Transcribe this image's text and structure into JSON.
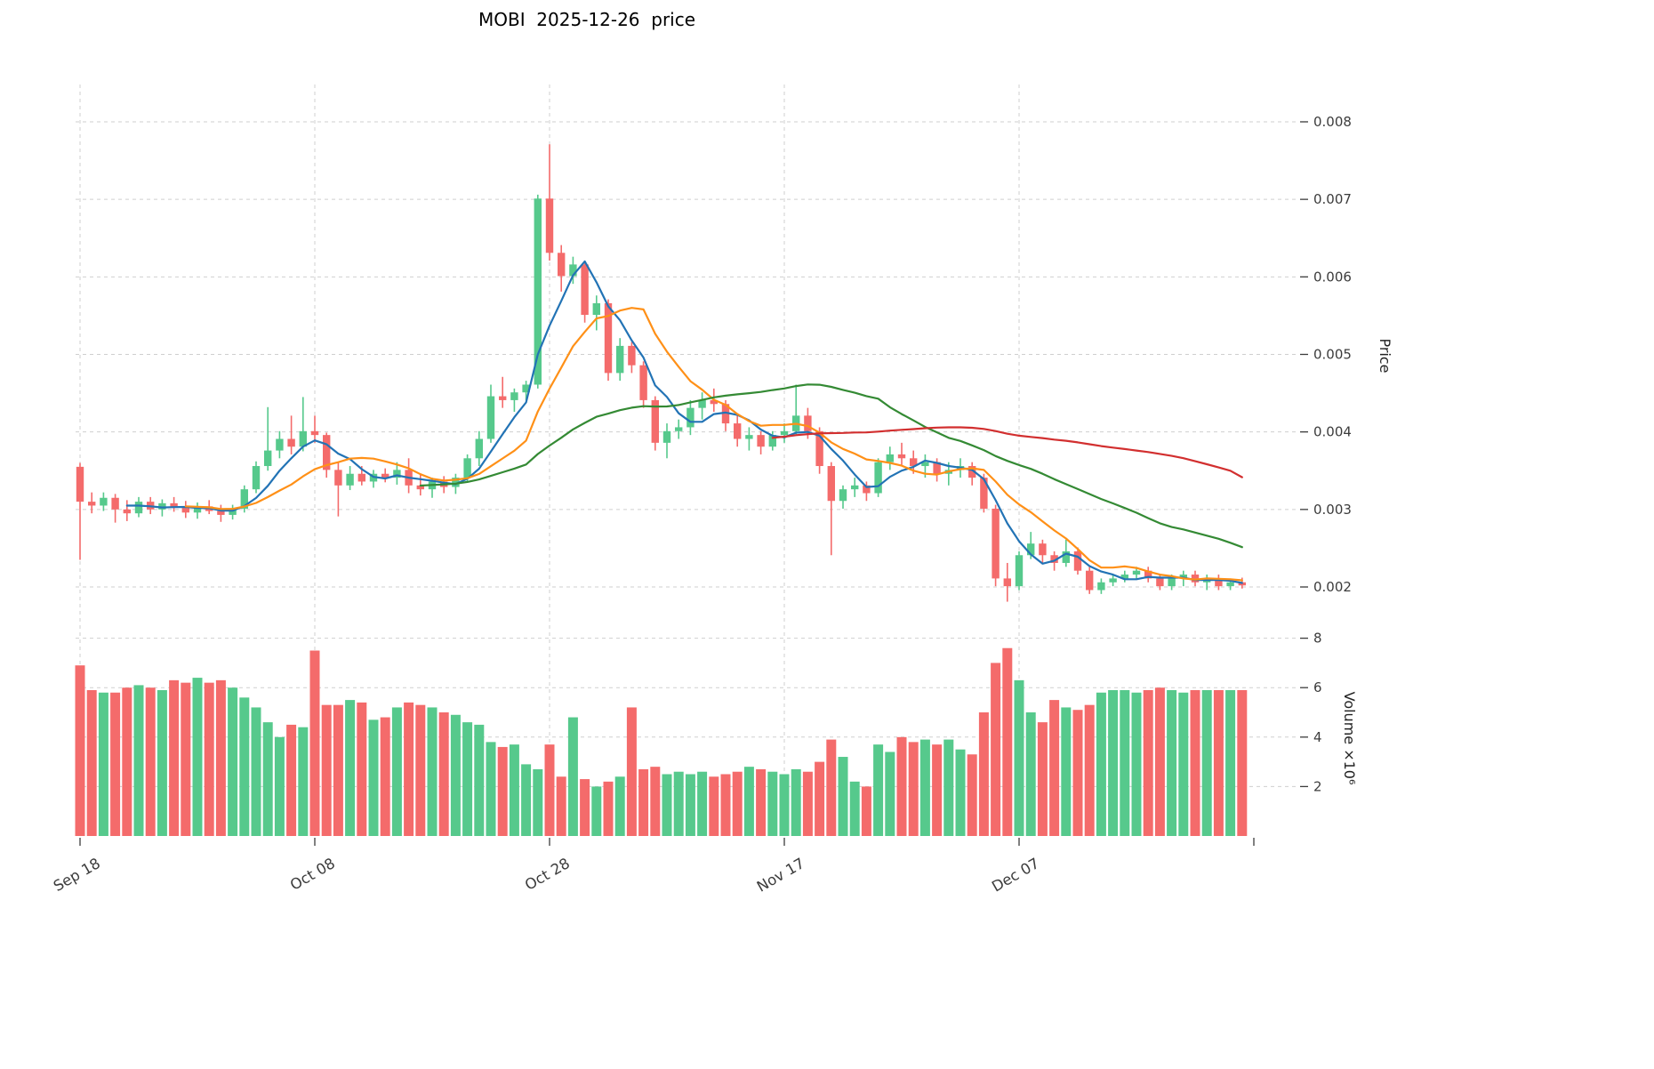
{
  "title": "MOBI  2025-12-26  price",
  "axes": {
    "price_axis_label": "Price",
    "volume_axis_label": "Volume ×10⁶",
    "price_ticks": [
      0.002,
      0.003,
      0.004,
      0.005,
      0.006,
      0.007,
      0.008
    ],
    "volume_ticks": [
      2,
      4,
      6,
      8
    ],
    "x_ticks": [
      {
        "index": 0,
        "label": "Sep 18"
      },
      {
        "index": 20,
        "label": "Oct 08"
      },
      {
        "index": 40,
        "label": "Oct 28"
      },
      {
        "index": 60,
        "label": "Nov 17"
      },
      {
        "index": 80,
        "label": "Dec 07"
      }
    ]
  },
  "colors": {
    "up": "#56c98c",
    "down": "#f46b6b",
    "grid": "#cfcfcf",
    "tick_text": "#3c3c3c",
    "axis_title_text": "#222222",
    "ma5": "#2273b5",
    "ma10": "#ff9017",
    "ma30": "#348a34",
    "ma60": "#d22f2f"
  },
  "chart_data": {
    "type": "candlestick",
    "title": "MOBI  2025-12-26  price",
    "price_ylim": [
      0.002,
      0.008
    ],
    "volume_ylim": [
      0,
      8
    ],
    "grid": true,
    "legend": false,
    "moving_averages": [
      {
        "name": "MA5",
        "window": 5,
        "color_key": "ma5"
      },
      {
        "name": "MA10",
        "window": 10,
        "color_key": "ma10"
      },
      {
        "name": "MA30",
        "window": 30,
        "color_key": "ma30"
      },
      {
        "name": "MA60",
        "window": 60,
        "color_key": "ma60"
      }
    ],
    "ohlc": [
      [
        0.00355,
        0.0036,
        0.00235,
        0.0031
      ],
      [
        0.0031,
        0.00322,
        0.00295,
        0.00305
      ],
      [
        0.00305,
        0.00322,
        0.00298,
        0.00315
      ],
      [
        0.00315,
        0.0032,
        0.00283,
        0.003
      ],
      [
        0.003,
        0.00312,
        0.00285,
        0.00295
      ],
      [
        0.00295,
        0.00316,
        0.0029,
        0.0031
      ],
      [
        0.0031,
        0.00316,
        0.00294,
        0.003
      ],
      [
        0.003,
        0.00313,
        0.00291,
        0.00308
      ],
      [
        0.00308,
        0.00316,
        0.00297,
        0.00302
      ],
      [
        0.00302,
        0.00311,
        0.00289,
        0.00296
      ],
      [
        0.00296,
        0.00309,
        0.00288,
        0.00304
      ],
      [
        0.00304,
        0.00312,
        0.00294,
        0.00298
      ],
      [
        0.00298,
        0.00306,
        0.00284,
        0.00293
      ],
      [
        0.00293,
        0.00306,
        0.00287,
        0.00301
      ],
      [
        0.00301,
        0.00331,
        0.00296,
        0.00326
      ],
      [
        0.00326,
        0.00362,
        0.00321,
        0.00356
      ],
      [
        0.00356,
        0.00432,
        0.0035,
        0.00376
      ],
      [
        0.00376,
        0.00401,
        0.00366,
        0.00391
      ],
      [
        0.00391,
        0.00421,
        0.00371,
        0.00381
      ],
      [
        0.00381,
        0.00445,
        0.00375,
        0.00401
      ],
      [
        0.00401,
        0.00421,
        0.00386,
        0.00396
      ],
      [
        0.00396,
        0.00399,
        0.00341,
        0.00351
      ],
      [
        0.00351,
        0.00361,
        0.00291,
        0.00331
      ],
      [
        0.00331,
        0.00356,
        0.00325,
        0.00346
      ],
      [
        0.00346,
        0.00356,
        0.00331,
        0.00336
      ],
      [
        0.00336,
        0.00351,
        0.00328,
        0.00346
      ],
      [
        0.00346,
        0.00353,
        0.00335,
        0.00341
      ],
      [
        0.00341,
        0.00361,
        0.00332,
        0.00351
      ],
      [
        0.00351,
        0.00366,
        0.00321,
        0.00331
      ],
      [
        0.00331,
        0.00346,
        0.00318,
        0.00326
      ],
      [
        0.00326,
        0.00341,
        0.00315,
        0.00336
      ],
      [
        0.00336,
        0.00343,
        0.00321,
        0.00329
      ],
      [
        0.00329,
        0.00346,
        0.0032,
        0.00341
      ],
      [
        0.00341,
        0.00371,
        0.00336,
        0.00366
      ],
      [
        0.00366,
        0.00401,
        0.00356,
        0.00391
      ],
      [
        0.00391,
        0.00461,
        0.00386,
        0.00446
      ],
      [
        0.00446,
        0.00471,
        0.00431,
        0.00441
      ],
      [
        0.00441,
        0.00456,
        0.00426,
        0.00451
      ],
      [
        0.00451,
        0.00466,
        0.00441,
        0.00461
      ],
      [
        0.00461,
        0.00706,
        0.00456,
        0.00701
      ],
      [
        0.00701,
        0.00771,
        0.00621,
        0.00631
      ],
      [
        0.00631,
        0.00641,
        0.00581,
        0.00601
      ],
      [
        0.00601,
        0.00626,
        0.00591,
        0.00616
      ],
      [
        0.00616,
        0.00621,
        0.00541,
        0.00551
      ],
      [
        0.00551,
        0.00576,
        0.00531,
        0.00566
      ],
      [
        0.00566,
        0.00571,
        0.00466,
        0.00476
      ],
      [
        0.00476,
        0.00521,
        0.00466,
        0.00511
      ],
      [
        0.00511,
        0.00516,
        0.00476,
        0.00486
      ],
      [
        0.00486,
        0.00491,
        0.00431,
        0.00441
      ],
      [
        0.00441,
        0.00446,
        0.00376,
        0.00386
      ],
      [
        0.00386,
        0.00411,
        0.00366,
        0.00401
      ],
      [
        0.00401,
        0.00416,
        0.00391,
        0.00406
      ],
      [
        0.00406,
        0.00441,
        0.00396,
        0.00431
      ],
      [
        0.00431,
        0.00451,
        0.00416,
        0.00441
      ],
      [
        0.00441,
        0.00456,
        0.00426,
        0.00436
      ],
      [
        0.00436,
        0.00441,
        0.00401,
        0.00411
      ],
      [
        0.00411,
        0.00421,
        0.00381,
        0.00391
      ],
      [
        0.00391,
        0.00406,
        0.00376,
        0.00396
      ],
      [
        0.00396,
        0.00401,
        0.00371,
        0.00381
      ],
      [
        0.00381,
        0.00401,
        0.00376,
        0.00396
      ],
      [
        0.00396,
        0.00411,
        0.00386,
        0.00401
      ],
      [
        0.00401,
        0.00461,
        0.00396,
        0.00421
      ],
      [
        0.00421,
        0.00431,
        0.00391,
        0.00401
      ],
      [
        0.00401,
        0.00406,
        0.00346,
        0.00356
      ],
      [
        0.00356,
        0.00361,
        0.00241,
        0.00311
      ],
      [
        0.00311,
        0.00331,
        0.00301,
        0.00326
      ],
      [
        0.00326,
        0.00341,
        0.00316,
        0.00331
      ],
      [
        0.00331,
        0.00336,
        0.00311,
        0.00321
      ],
      [
        0.00321,
        0.00366,
        0.00316,
        0.00361
      ],
      [
        0.00361,
        0.00381,
        0.00351,
        0.00371
      ],
      [
        0.00371,
        0.00386,
        0.00356,
        0.00366
      ],
      [
        0.00366,
        0.00376,
        0.00346,
        0.00356
      ],
      [
        0.00356,
        0.00371,
        0.00341,
        0.00361
      ],
      [
        0.00361,
        0.00366,
        0.00336,
        0.00346
      ],
      [
        0.00346,
        0.00361,
        0.00331,
        0.00351
      ],
      [
        0.00351,
        0.00366,
        0.00341,
        0.00356
      ],
      [
        0.00356,
        0.00361,
        0.00331,
        0.00341
      ],
      [
        0.00341,
        0.00346,
        0.00296,
        0.00301
      ],
      [
        0.00301,
        0.00306,
        0.00201,
        0.00211
      ],
      [
        0.00211,
        0.00231,
        0.00181,
        0.00201
      ],
      [
        0.00201,
        0.00246,
        0.00196,
        0.00241
      ],
      [
        0.00241,
        0.00271,
        0.00236,
        0.00256
      ],
      [
        0.00256,
        0.00261,
        0.00231,
        0.00241
      ],
      [
        0.00241,
        0.00246,
        0.00221,
        0.00231
      ],
      [
        0.00231,
        0.00261,
        0.00226,
        0.00246
      ],
      [
        0.00246,
        0.00251,
        0.00216,
        0.00221
      ],
      [
        0.00221,
        0.00226,
        0.00191,
        0.00196
      ],
      [
        0.00196,
        0.00211,
        0.00191,
        0.00206
      ],
      [
        0.00206,
        0.00216,
        0.00201,
        0.00211
      ],
      [
        0.00211,
        0.00221,
        0.00206,
        0.00216
      ],
      [
        0.00216,
        0.00226,
        0.00211,
        0.00221
      ],
      [
        0.00221,
        0.00226,
        0.00206,
        0.00211
      ],
      [
        0.00211,
        0.00216,
        0.00196,
        0.00201
      ],
      [
        0.00201,
        0.00216,
        0.00196,
        0.00211
      ],
      [
        0.00211,
        0.00221,
        0.00201,
        0.00216
      ],
      [
        0.00216,
        0.00221,
        0.00201,
        0.00206
      ],
      [
        0.00206,
        0.00216,
        0.00196,
        0.00211
      ],
      [
        0.00211,
        0.00216,
        0.00196,
        0.00201
      ],
      [
        0.00201,
        0.00211,
        0.00196,
        0.00206
      ],
      [
        0.00206,
        0.00212,
        0.00198,
        0.00202
      ]
    ],
    "volume": [
      6.9,
      5.9,
      5.8,
      5.8,
      6.0,
      6.1,
      6.0,
      5.9,
      6.3,
      6.2,
      6.4,
      6.2,
      6.3,
      6.0,
      5.6,
      5.2,
      4.6,
      4.0,
      4.5,
      4.4,
      7.5,
      5.3,
      5.3,
      5.5,
      5.4,
      4.7,
      4.8,
      5.2,
      5.4,
      5.3,
      5.2,
      5.0,
      4.9,
      4.6,
      4.5,
      3.8,
      3.6,
      3.7,
      2.9,
      2.7,
      3.7,
      2.4,
      4.8,
      2.3,
      2.0,
      2.2,
      2.4,
      5.2,
      2.7,
      2.8,
      2.5,
      2.6,
      2.5,
      2.6,
      2.4,
      2.5,
      2.6,
      2.8,
      2.7,
      2.6,
      2.5,
      2.7,
      2.6,
      3.0,
      3.9,
      3.2,
      2.2,
      2.0,
      3.7,
      3.4,
      4.0,
      3.8,
      3.9,
      3.7,
      3.9,
      3.5,
      3.3,
      5.0,
      7.0,
      7.6,
      6.3,
      5.0,
      4.6,
      5.5,
      5.2,
      5.1,
      5.3,
      5.8,
      5.9,
      5.9,
      5.8,
      5.9,
      6.0,
      5.9,
      5.8,
      5.9,
      5.9,
      5.9,
      5.9,
      5.9
    ]
  }
}
